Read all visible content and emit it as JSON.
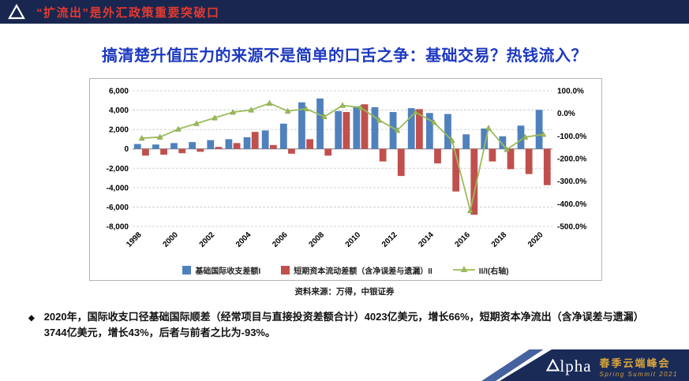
{
  "header": {
    "bar_title": "“扩流出”是外汇政策重要突破口",
    "logo_icon": "alpha-triangle-logo"
  },
  "slide": {
    "title": "搞清楚升值压力的来源不是简单的口舌之争：基础交易？热钱流入？",
    "source_note": "资料来源：万得，中银证券",
    "bullet_marker": "◆",
    "bullet": "2020年，国际收支口径基础国际顺差（经常项目与直接投资差额合计）4023亿美元，增长66%，短期资本净流出（含净误差与遗漏）3744亿美元，增长43%，后者与前者之比为-93%。"
  },
  "footer": {
    "brand_rest": "lpha",
    "event_cn": "春季云端峰会",
    "event_en": "Spring Summit 2021"
  },
  "colors": {
    "navy": "#192750",
    "accent_red": "#e5392f",
    "title_blue": "#1d39c0",
    "bar_blue": "#4F81BD",
    "bar_red": "#C0504D",
    "line_green": "#9BBB59",
    "gold": "#d8a33c"
  },
  "chart_data": {
    "type": "bar",
    "subtype": "dual-axis bar + line combo",
    "categories": [
      "1998",
      "1999",
      "2000",
      "2001",
      "2002",
      "2003",
      "2004",
      "2005",
      "2006",
      "2007",
      "2008",
      "2009",
      "2010",
      "2011",
      "2012",
      "2013",
      "2014",
      "2015",
      "2016",
      "2017",
      "2018",
      "2019",
      "2020"
    ],
    "series": [
      {
        "name": "基础国际收支差额I",
        "type": "bar",
        "axis": "left",
        "color": "#4F81BD",
        "values": [
          500,
          450,
          600,
          700,
          900,
          1000,
          1200,
          1900,
          2600,
          4800,
          5200,
          3900,
          4400,
          4300,
          3800,
          4200,
          3700,
          3600,
          1500,
          2100,
          1300,
          2400,
          4023
        ]
      },
      {
        "name": "短期资本流动差额（含净误差与遗漏）II",
        "type": "bar",
        "axis": "left",
        "color": "#C0504D",
        "values": [
          -700,
          -600,
          -450,
          -300,
          200,
          600,
          1750,
          400,
          -500,
          1000,
          -700,
          3800,
          4600,
          -1300,
          -2800,
          4100,
          -1500,
          -4400,
          -6800,
          -1300,
          -2100,
          -2600,
          -3744
        ]
      },
      {
        "name": "II/I(右轴)",
        "type": "line",
        "axis": "right",
        "color": "#9BBB59",
        "values": [
          -110,
          -105,
          -70,
          -45,
          -20,
          5,
          15,
          45,
          10,
          20,
          -15,
          35,
          25,
          -30,
          -75,
          5,
          -40,
          -120,
          -430,
          -65,
          -160,
          -105,
          -93
        ]
      }
    ],
    "left_axis": {
      "min": -8000,
      "max": 6000,
      "tick_step": 2000,
      "labels": [
        "6,000",
        "4,000",
        "2,000",
        "0",
        "-2,000",
        "-4,000",
        "-6,000",
        "-8,000"
      ]
    },
    "right_axis": {
      "min": -500,
      "max": 100,
      "tick_step": 100,
      "labels": [
        "100.0%",
        "0.0%",
        "-100.0%",
        "-200.0%",
        "-300.0%",
        "-400.0%",
        "-500.0%"
      ]
    },
    "x_tick_labels": [
      "1998",
      "2000",
      "2002",
      "2004",
      "2006",
      "2008",
      "2010",
      "2012",
      "2014",
      "2016",
      "2018",
      "2020"
    ],
    "x_tick_interval": 2,
    "grid": "dashed horizontal gridlines",
    "legend_position": "bottom",
    "units_left": "亿美元",
    "units_right": "%"
  }
}
